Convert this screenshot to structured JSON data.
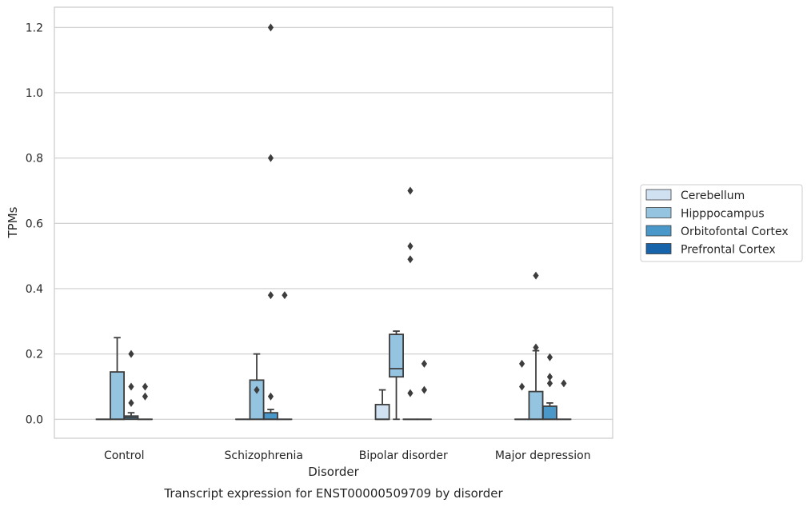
{
  "chart_data": {
    "type": "box",
    "caption": "Transcript expression for ENST00000509709 by disorder",
    "xlabel": "Disorder",
    "ylabel": "TPMs",
    "ylim": [
      -0.058,
      1.262
    ],
    "yticks": [
      "0.0",
      "0.2",
      "0.4",
      "0.6",
      "0.8",
      "1.0",
      "1.2"
    ],
    "ytick_values": [
      0.0,
      0.2,
      0.4,
      0.6,
      0.8,
      1.0,
      1.2
    ],
    "categories": [
      "Control",
      "Schizophrenia",
      "Bipolar disorder",
      "Major depression"
    ],
    "grid": "horizontal",
    "legend_position": "right",
    "series": [
      {
        "name": "Cerebellum",
        "color": "#d0e1f2",
        "boxes": [
          {
            "category": "Control",
            "whislo": 0,
            "q1": 0,
            "med": 0,
            "q3": 0,
            "whishi": 0,
            "fliers": []
          },
          {
            "category": "Schizophrenia",
            "whislo": 0,
            "q1": 0,
            "med": 0,
            "q3": 0,
            "whishi": 0,
            "fliers": []
          },
          {
            "category": "Bipolar disorder",
            "whislo": 0,
            "q1": 0,
            "med": 0,
            "q3": 0.045,
            "whishi": 0.09,
            "fliers": []
          },
          {
            "category": "Major depression",
            "whislo": 0,
            "q1": 0,
            "med": 0,
            "q3": 0,
            "whishi": 0,
            "fliers": [
              0.1,
              0.17
            ]
          }
        ]
      },
      {
        "name": "Hipppocampus",
        "color": "#94c4df",
        "boxes": [
          {
            "category": "Control",
            "whislo": 0,
            "q1": 0,
            "med": 0,
            "q3": 0.145,
            "whishi": 0.25,
            "fliers": []
          },
          {
            "category": "Schizophrenia",
            "whislo": 0,
            "q1": 0,
            "med": 0,
            "q3": 0.12,
            "whishi": 0.2,
            "fliers": [
              0.09
            ]
          },
          {
            "category": "Bipolar disorder",
            "whislo": 0,
            "q1": 0.13,
            "med": 0.155,
            "q3": 0.26,
            "whishi": 0.27,
            "fliers": []
          },
          {
            "category": "Major depression",
            "whislo": 0,
            "q1": 0,
            "med": 0,
            "q3": 0.085,
            "whishi": 0.21,
            "fliers": [
              0.22,
              0.44
            ]
          }
        ]
      },
      {
        "name": "Orbitofontal Cortex",
        "color": "#4a98c9",
        "boxes": [
          {
            "category": "Control",
            "whislo": 0,
            "q1": 0,
            "med": 0.005,
            "q3": 0.01,
            "whishi": 0.02,
            "fliers": [
              0.05,
              0.1,
              0.2
            ]
          },
          {
            "category": "Schizophrenia",
            "whislo": 0,
            "q1": 0,
            "med": 0,
            "q3": 0.02,
            "whishi": 0.03,
            "fliers": [
              0.07,
              0.38,
              0.8,
              1.2
            ]
          },
          {
            "category": "Bipolar disorder",
            "whislo": 0,
            "q1": 0,
            "med": 0,
            "q3": 0,
            "whishi": 0,
            "fliers": [
              0.08,
              0.49,
              0.53,
              0.7
            ]
          },
          {
            "category": "Major depression",
            "whislo": 0,
            "q1": 0,
            "med": 0,
            "q3": 0.04,
            "whishi": 0.05,
            "fliers": [
              0.11,
              0.13,
              0.19
            ]
          }
        ]
      },
      {
        "name": "Prefrontal Cortex",
        "color": "#1764ab",
        "boxes": [
          {
            "category": "Control",
            "whislo": 0,
            "q1": 0,
            "med": 0,
            "q3": 0,
            "whishi": 0,
            "fliers": [
              0.07,
              0.1
            ]
          },
          {
            "category": "Schizophrenia",
            "whislo": 0,
            "q1": 0,
            "med": 0,
            "q3": 0,
            "whishi": 0,
            "fliers": [
              0.38
            ]
          },
          {
            "category": "Bipolar disorder",
            "whislo": 0,
            "q1": 0,
            "med": 0,
            "q3": 0,
            "whishi": 0,
            "fliers": [
              0.09,
              0.17
            ]
          },
          {
            "category": "Major depression",
            "whislo": 0,
            "q1": 0,
            "med": 0,
            "q3": 0,
            "whishi": 0,
            "fliers": [
              0.11
            ]
          }
        ]
      }
    ]
  }
}
